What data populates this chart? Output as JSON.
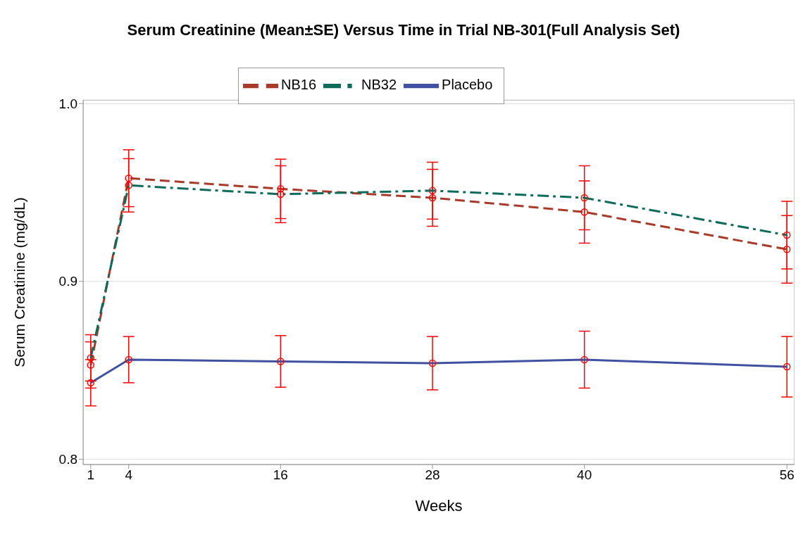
{
  "chart_data": {
    "type": "line",
    "title": "Serum Creatinine (Mean±SE) Versus Time in Trial NB-301(Full Analysis Set)",
    "xlabel": "Weeks",
    "ylabel": "Serum Creatinine (mg/dL)",
    "x": [
      1,
      4,
      16,
      28,
      40,
      56
    ],
    "series": [
      {
        "name": "Placebo",
        "color": "#3f51a0",
        "line_style": "solid",
        "values": [
          0.843,
          0.856,
          0.855,
          0.854,
          0.856,
          0.852
        ],
        "errors": [
          0.013,
          0.013,
          0.0145,
          0.015,
          0.016,
          0.017
        ]
      },
      {
        "name": "NB16",
        "color": "#a83a2a",
        "line_style": "dashed",
        "values": [
          0.853,
          0.958,
          0.952,
          0.947,
          0.939,
          0.918
        ],
        "errors": [
          0.013,
          0.016,
          0.0167,
          0.016,
          0.0175,
          0.019
        ]
      },
      {
        "name": "NB32",
        "color": "#0e6b5a",
        "line_style": "dashdot",
        "values": [
          0.857,
          0.954,
          0.949,
          0.951,
          0.947,
          0.926
        ],
        "errors": [
          0.013,
          0.015,
          0.016,
          0.016,
          0.018,
          0.019
        ]
      }
    ],
    "marker": "circle",
    "xlim": [
      0.4,
      56.6
    ],
    "xticks": [
      1,
      4,
      16,
      28,
      40,
      56
    ],
    "ylim": [
      0.797,
      1.002
    ],
    "yticks": [
      {
        "value": 0.8,
        "label": "0.8"
      },
      {
        "value": 0.9,
        "label": "0.9"
      },
      {
        "value": 1.0,
        "label": "1.0"
      }
    ],
    "grid": "y",
    "legend": "top"
  }
}
